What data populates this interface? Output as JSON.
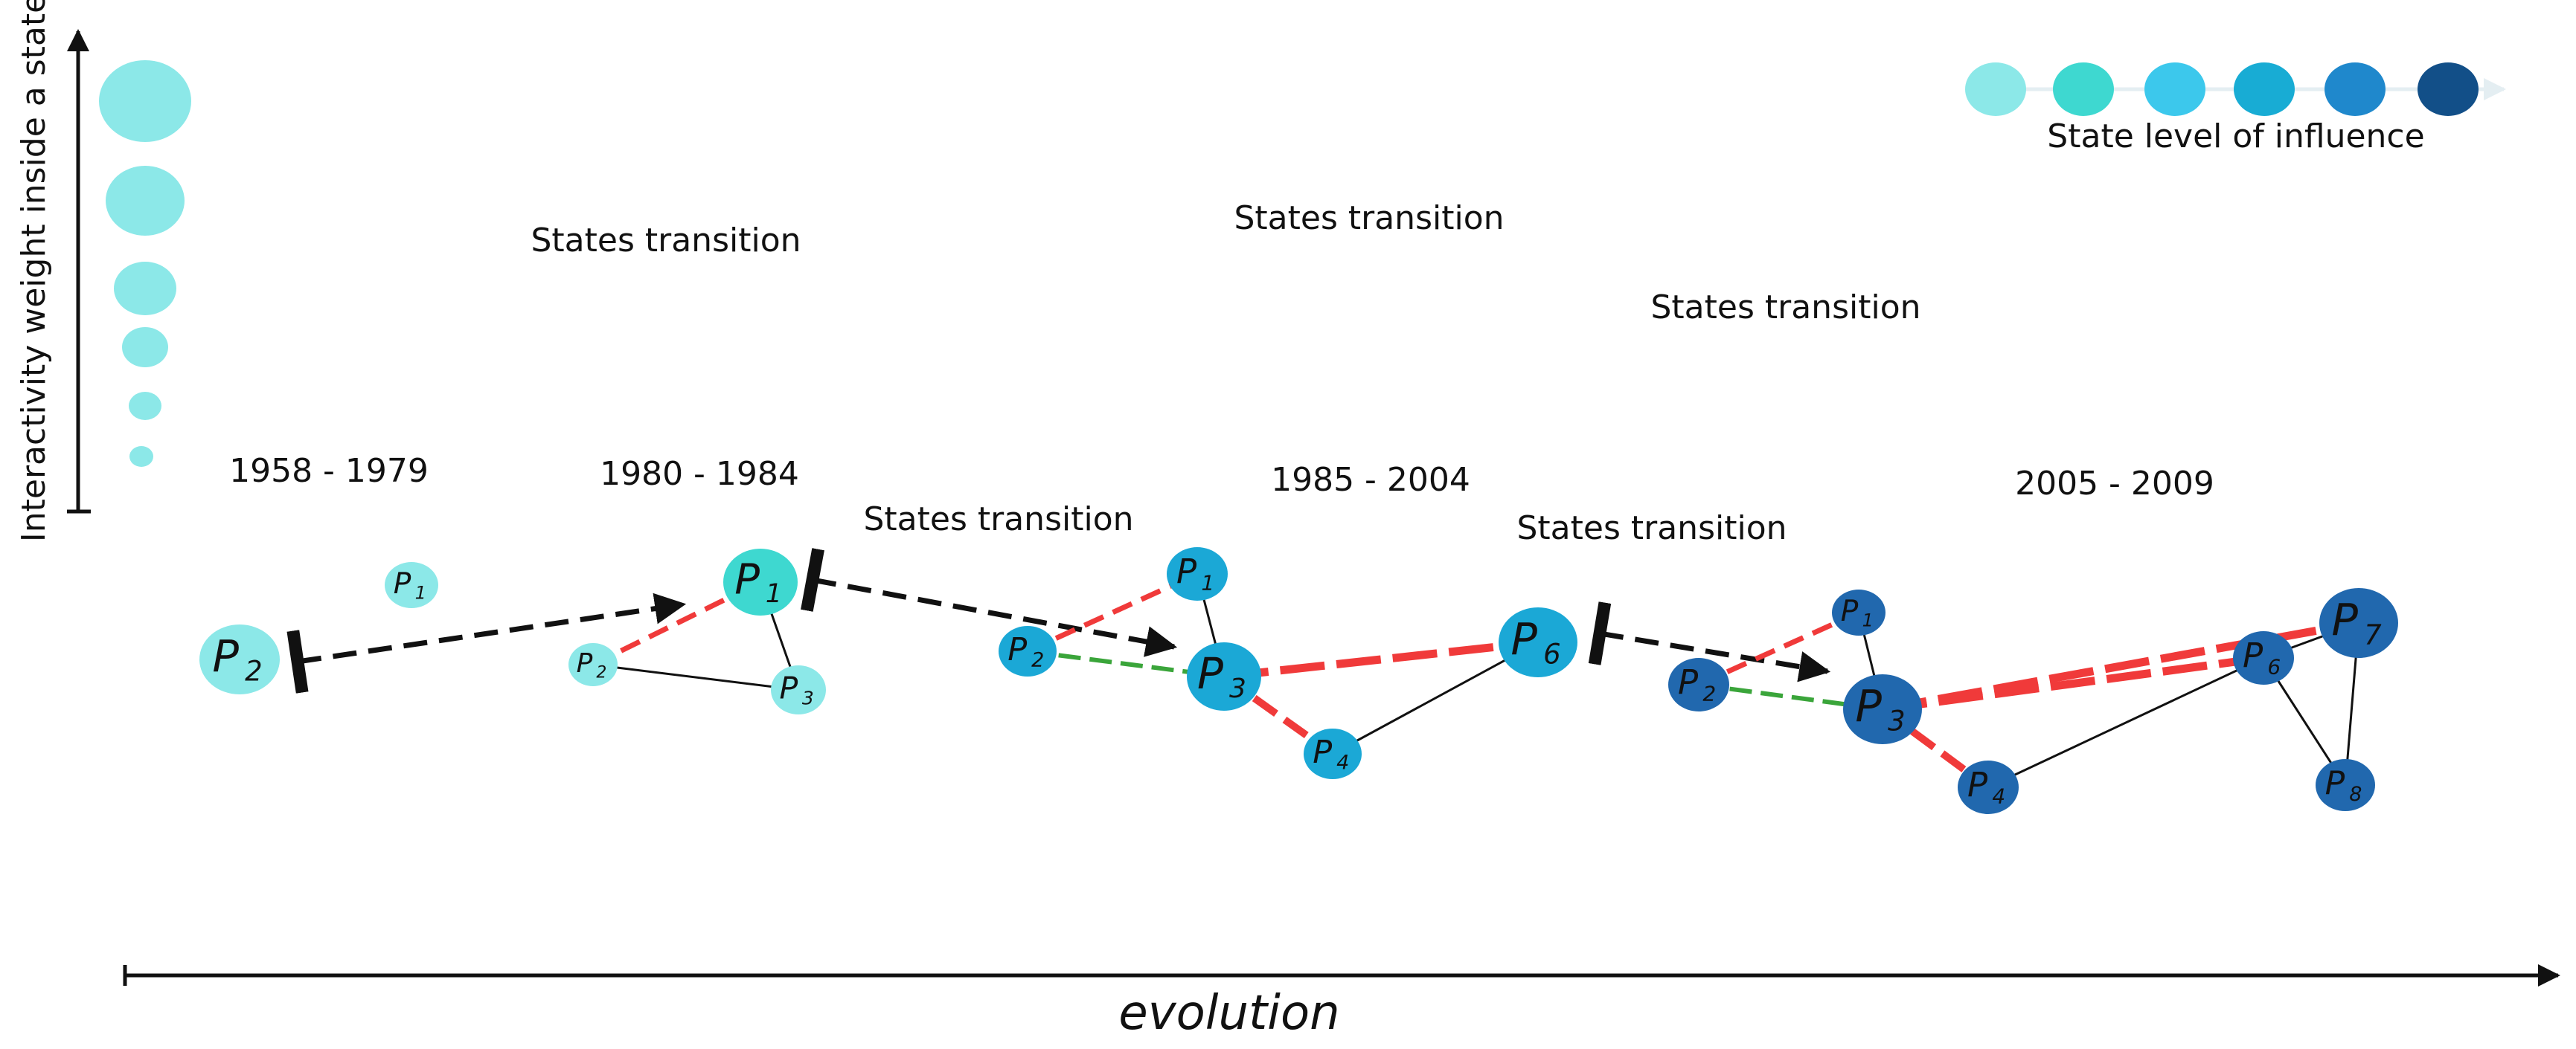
{
  "axes": {
    "y_label": "Interactivity weight inside a state",
    "x_label": "evolution"
  },
  "legend": {
    "title": "State level of influence",
    "colors": [
      "#8ce8e8",
      "#3ed8d0",
      "#3cc8ec",
      "#18acd4",
      "#1f88cc",
      "#124f88"
    ]
  },
  "weight_scale": {
    "color": "#8ce8e8",
    "levels": 6
  },
  "periods": [
    {
      "label": "1958 - 1979",
      "color": "#8ce8e8"
    },
    {
      "label": "1980 - 1984",
      "color": "#8ce8e8"
    },
    {
      "label": "1985 - 2004",
      "color": "#1ba8d6"
    },
    {
      "label": "2005 - 2009",
      "color": "#2168ae"
    }
  ],
  "transitions": [
    {
      "label": "States transition"
    },
    {
      "label": "States transition"
    },
    {
      "label": "States transition"
    },
    {
      "label": "States transition"
    },
    {
      "label": "States transition"
    }
  ],
  "nodes": [
    {
      "id": "g1-p1",
      "letter": "P",
      "sub": "1",
      "color": "#8ce8e8"
    },
    {
      "id": "g1-p2",
      "letter": "P",
      "sub": "2",
      "color": "#8ce8e8"
    },
    {
      "id": "g2-p1",
      "letter": "P",
      "sub": "1",
      "color": "#3ed8d0"
    },
    {
      "id": "g2-p2",
      "letter": "P",
      "sub": "2",
      "color": "#8ce8e8"
    },
    {
      "id": "g2-p3",
      "letter": "P",
      "sub": "3",
      "color": "#8ce8e8"
    },
    {
      "id": "g3-p1",
      "letter": "P",
      "sub": "1",
      "color": "#1ba8d6"
    },
    {
      "id": "g3-p2",
      "letter": "P",
      "sub": "2",
      "color": "#1ba8d6"
    },
    {
      "id": "g3-p3",
      "letter": "P",
      "sub": "3",
      "color": "#1ba8d6"
    },
    {
      "id": "g3-p4",
      "letter": "P",
      "sub": "4",
      "color": "#1ba8d6"
    },
    {
      "id": "g3-p6",
      "letter": "P",
      "sub": "6",
      "color": "#1ba8d6"
    },
    {
      "id": "g4-p1",
      "letter": "P",
      "sub": "1",
      "color": "#2168ae"
    },
    {
      "id": "g4-p2",
      "letter": "P",
      "sub": "2",
      "color": "#2168ae"
    },
    {
      "id": "g4-p3",
      "letter": "P",
      "sub": "3",
      "color": "#2168ae"
    },
    {
      "id": "g4-p4",
      "letter": "P",
      "sub": "4",
      "color": "#2168ae"
    },
    {
      "id": "g4-p6",
      "letter": "P",
      "sub": "6",
      "color": "#2168ae"
    },
    {
      "id": "g4-p7",
      "letter": "P",
      "sub": "7",
      "color": "#2168ae"
    },
    {
      "id": "g4-p8",
      "letter": "P",
      "sub": "8",
      "color": "#2168ae"
    }
  ],
  "edges": [
    {
      "from": "g2-p2",
      "to": "g2-p1",
      "kind": "conflict"
    },
    {
      "from": "g2-p1",
      "to": "g2-p3",
      "kind": "solid"
    },
    {
      "from": "g2-p2",
      "to": "g2-p3",
      "kind": "solid"
    },
    {
      "from": "g3-p2",
      "to": "g3-p1",
      "kind": "conflict"
    },
    {
      "from": "g3-p1",
      "to": "g3-p3",
      "kind": "solid"
    },
    {
      "from": "g3-p2",
      "to": "g3-p3",
      "kind": "cooperation"
    },
    {
      "from": "g3-p3",
      "to": "g3-p6",
      "kind": "conflict-strong"
    },
    {
      "from": "g3-p3",
      "to": "g3-p4",
      "kind": "conflict-solid"
    },
    {
      "from": "g3-p4",
      "to": "g3-p6",
      "kind": "solid"
    },
    {
      "from": "g4-p2",
      "to": "g4-p1",
      "kind": "conflict"
    },
    {
      "from": "g4-p1",
      "to": "g4-p3",
      "kind": "solid"
    },
    {
      "from": "g4-p2",
      "to": "g4-p3",
      "kind": "cooperation"
    },
    {
      "from": "g4-p3",
      "to": "g4-p7",
      "kind": "conflict-strong"
    },
    {
      "from": "g4-p3",
      "to": "g4-p6",
      "kind": "conflict-strong"
    },
    {
      "from": "g4-p3",
      "to": "g4-p4",
      "kind": "conflict-solid"
    },
    {
      "from": "g4-p4",
      "to": "g4-p6",
      "kind": "solid"
    },
    {
      "from": "g4-p6",
      "to": "g4-p7",
      "kind": "solid"
    },
    {
      "from": "g4-p6",
      "to": "g4-p8",
      "kind": "solid"
    },
    {
      "from": "g4-p7",
      "to": "g4-p8",
      "kind": "solid"
    }
  ],
  "edge_styles": {
    "solid": "#111111",
    "conflict": "#f03a3a",
    "conflict-strong": "#f03a3a",
    "conflict-solid": "#f03a3a",
    "cooperation": "#3aa53a",
    "transition": "#111111"
  }
}
